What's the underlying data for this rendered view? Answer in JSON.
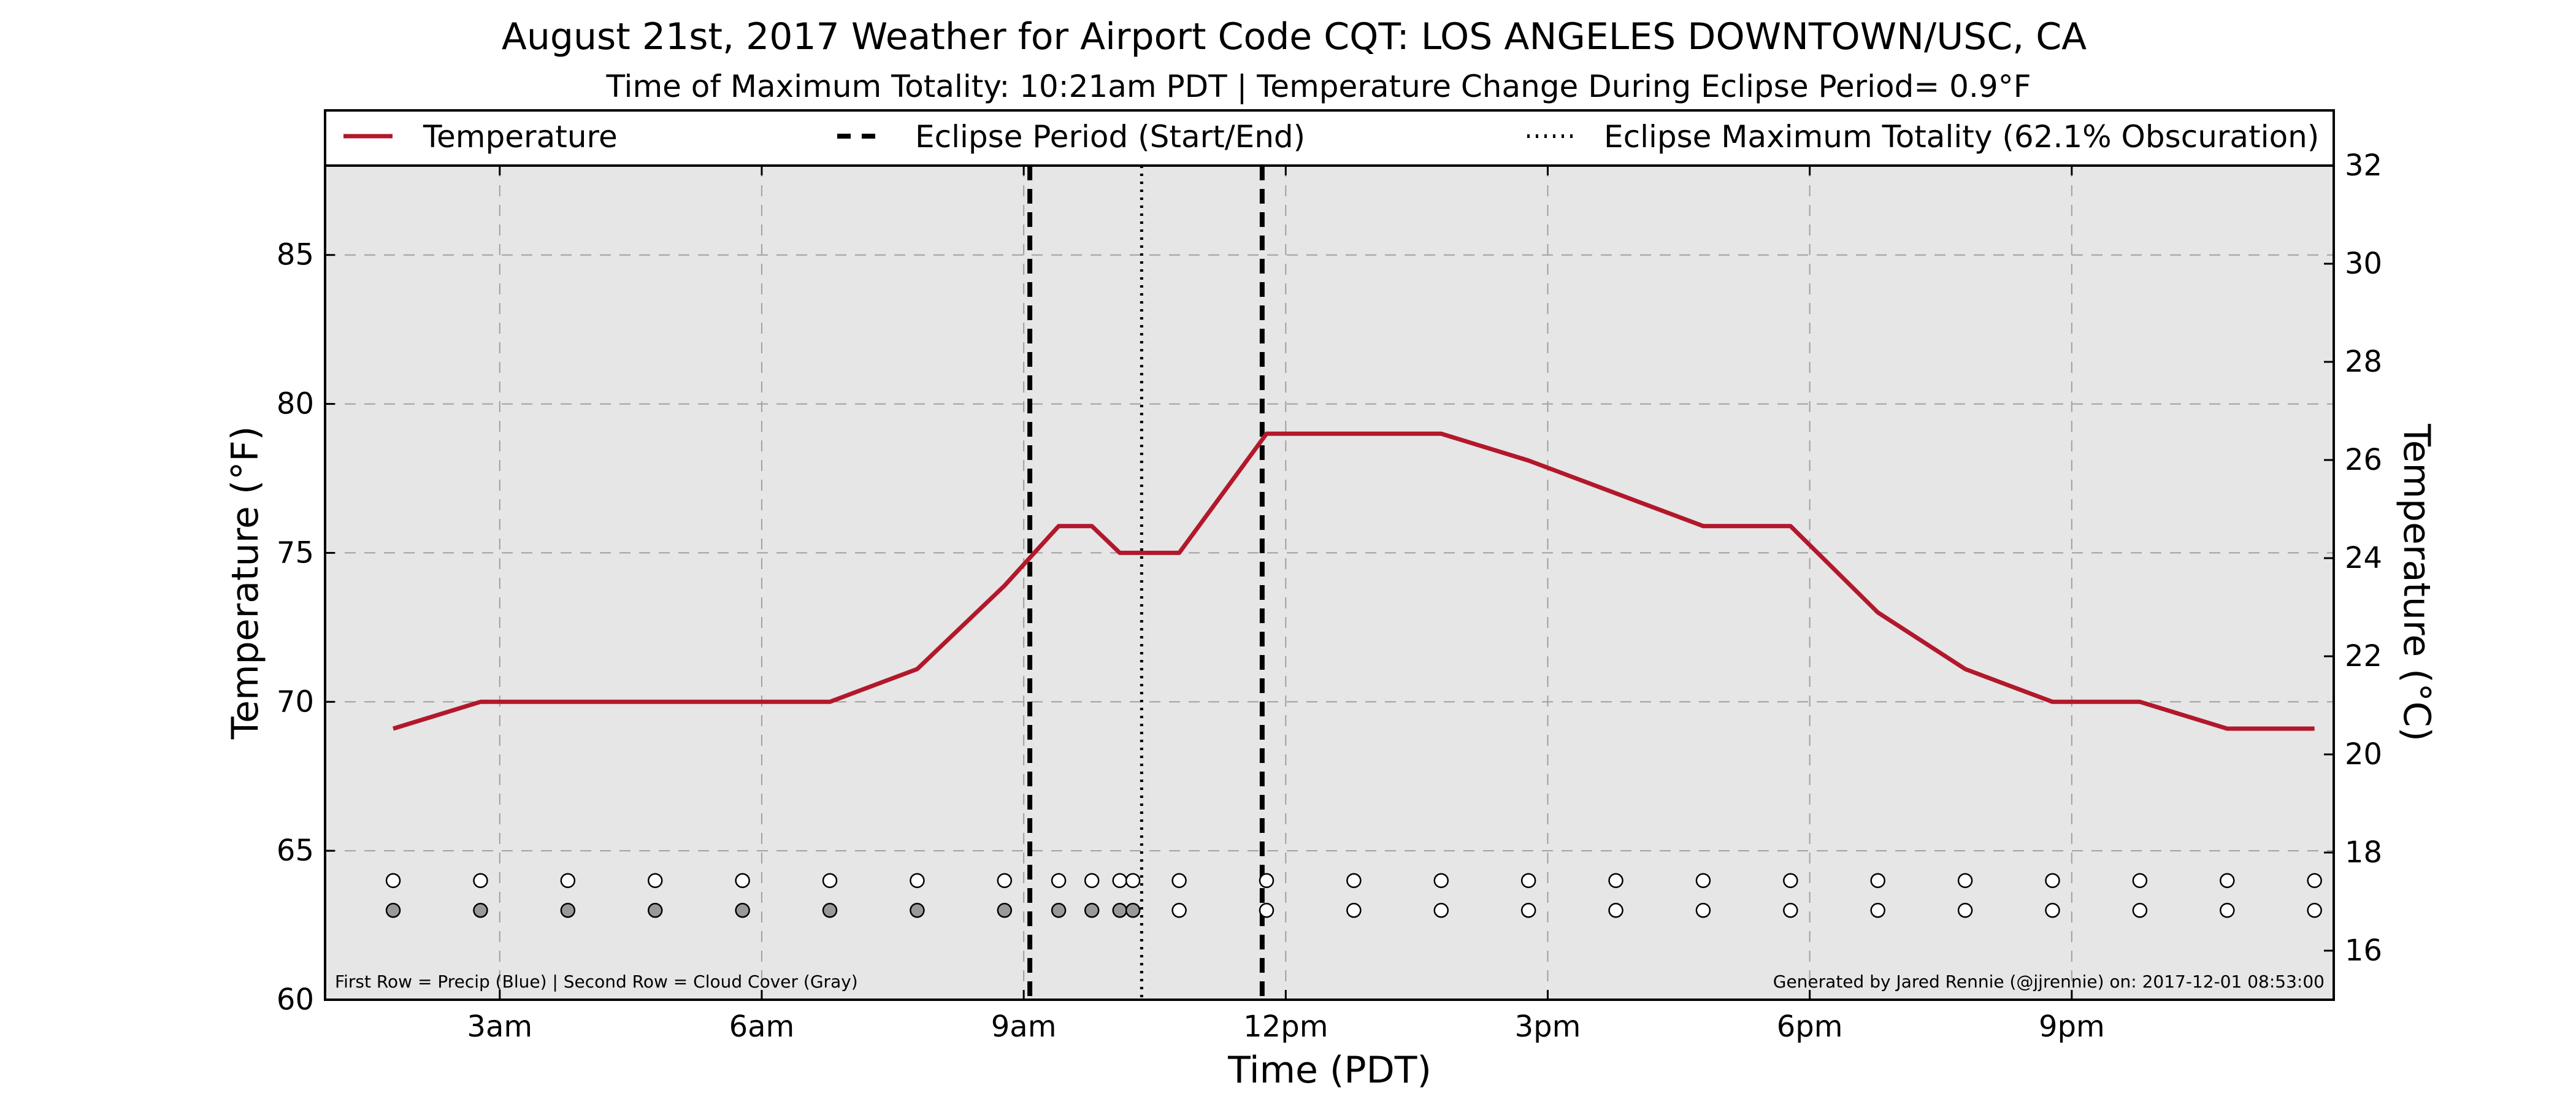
{
  "chart_data": {
    "type": "line",
    "title": "August 21st, 2017 Weather for Airport Code CQT: LOS ANGELES DOWNTOWN/USC, CA",
    "subtitle": "Time of Maximum Totality: 10:21am PDT | Temperature Change During Eclipse Period= 0.9°F",
    "xlabel": "Time (PDT)",
    "ylabel": "Temperature (°F)",
    "y2label": "Temperature (°C)",
    "xlim": [
      1.0,
      24.0
    ],
    "ylim": [
      60,
      88
    ],
    "y2lim": [
      15,
      32
    ],
    "x_ticks": [
      {
        "value": 3,
        "label": "3am"
      },
      {
        "value": 6,
        "label": "6am"
      },
      {
        "value": 9,
        "label": "9am"
      },
      {
        "value": 12,
        "label": "12pm"
      },
      {
        "value": 15,
        "label": "3pm"
      },
      {
        "value": 18,
        "label": "6pm"
      },
      {
        "value": 21,
        "label": "9pm"
      }
    ],
    "y_ticks": [
      60,
      65,
      70,
      75,
      80,
      85
    ],
    "y2_ticks": [
      16,
      18,
      20,
      22,
      24,
      26,
      28,
      30,
      32
    ],
    "grid": true,
    "legend_position": "top",
    "legend": [
      {
        "label": "Temperature",
        "style": "solid"
      },
      {
        "label": "Eclipse Period (Start/End)",
        "style": "dashed"
      },
      {
        "label": "Eclipse Maximum Totality (62.1% Obscuration)",
        "style": "dotted"
      }
    ],
    "series": [
      {
        "name": "Temperature",
        "color": "#b2182b",
        "points": [
          {
            "x": 1.78,
            "y": 69.1
          },
          {
            "x": 2.78,
            "y": 70.0
          },
          {
            "x": 3.78,
            "y": 70.0
          },
          {
            "x": 4.78,
            "y": 70.0
          },
          {
            "x": 5.78,
            "y": 70.0
          },
          {
            "x": 6.78,
            "y": 70.0
          },
          {
            "x": 7.78,
            "y": 71.1
          },
          {
            "x": 8.78,
            "y": 73.9
          },
          {
            "x": 9.4,
            "y": 75.9
          },
          {
            "x": 9.78,
            "y": 75.9
          },
          {
            "x": 10.1,
            "y": 75.0
          },
          {
            "x": 10.78,
            "y": 75.0
          },
          {
            "x": 11.78,
            "y": 79.0
          },
          {
            "x": 12.78,
            "y": 79.0
          },
          {
            "x": 13.78,
            "y": 79.0
          },
          {
            "x": 14.78,
            "y": 78.1
          },
          {
            "x": 15.78,
            "y": 77.0
          },
          {
            "x": 16.78,
            "y": 75.9
          },
          {
            "x": 17.78,
            "y": 75.9
          },
          {
            "x": 18.78,
            "y": 73.0
          },
          {
            "x": 19.78,
            "y": 71.1
          },
          {
            "x": 20.78,
            "y": 70.0
          },
          {
            "x": 21.78,
            "y": 70.0
          },
          {
            "x": 22.78,
            "y": 69.1
          },
          {
            "x": 23.78,
            "y": 69.1
          }
        ]
      }
    ],
    "eclipse": {
      "start": 9.07,
      "end": 11.73,
      "max": 10.35
    },
    "markers": {
      "precip_y": 64.0,
      "cloud_y": 63.0,
      "precip_x": [
        1.78,
        2.78,
        3.78,
        4.78,
        5.78,
        6.78,
        7.78,
        8.78,
        9.4,
        9.78,
        10.1,
        10.25,
        10.78,
        11.78,
        12.78,
        13.78,
        14.78,
        15.78,
        16.78,
        17.78,
        18.78,
        19.78,
        20.78,
        21.78,
        22.78,
        23.78
      ],
      "cloud_x": [
        1.78,
        2.78,
        3.78,
        4.78,
        5.78,
        6.78,
        7.78,
        8.78,
        9.4,
        9.78,
        10.1,
        10.25,
        10.78,
        11.78,
        12.78,
        13.78,
        14.78,
        15.78,
        16.78,
        17.78,
        18.78,
        19.78,
        20.78,
        21.78,
        22.78,
        23.78
      ],
      "cloud_shaded": [
        true,
        true,
        true,
        true,
        true,
        true,
        true,
        true,
        true,
        true,
        true,
        true,
        false,
        false,
        false,
        false,
        false,
        false,
        false,
        false,
        false,
        false,
        false,
        false,
        false,
        false
      ]
    },
    "footnote_left": "First Row = Precip (Blue) | Second Row = Cloud Cover (Gray)",
    "footnote_right": "Generated by Jared Rennie (@jjrennie) on: 2017-12-01 08:53:00",
    "colors": {
      "plot_background": "#e6e6e6",
      "temperature_line": "#b2182b",
      "cloud_fill": "#999999",
      "grid": "#a0a0a0"
    }
  }
}
